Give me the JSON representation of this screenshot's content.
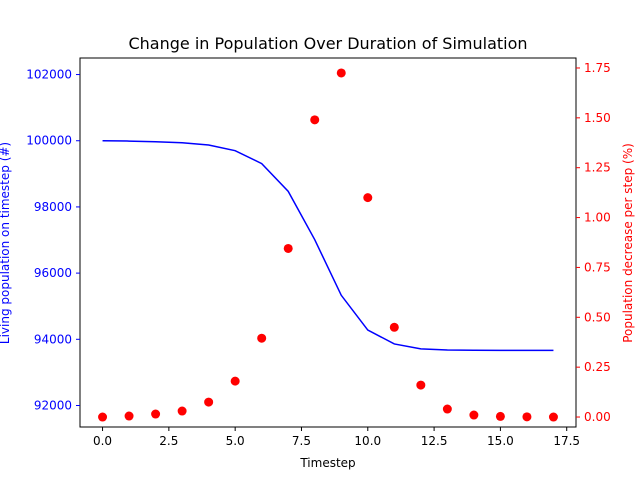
{
  "chart_data": {
    "type": "line+scatter",
    "title": "Change in Population Over Duration of Simulation",
    "xlabel": "Timestep",
    "ylabel_left": "Living population on timestep (#)",
    "ylabel_right": "Population decrease per step (%)",
    "xlim": [
      -0.85,
      17.85
    ],
    "ylim_left": [
      91350,
      102500
    ],
    "ylim_right": [
      -0.05,
      1.8
    ],
    "x_ticks": [
      0.0,
      2.5,
      5.0,
      7.5,
      10.0,
      12.5,
      15.0,
      17.5
    ],
    "x_tick_labels": [
      "0.0",
      "2.5",
      "5.0",
      "7.5",
      "10.0",
      "12.5",
      "15.0",
      "17.5"
    ],
    "y_left_ticks": [
      92000,
      94000,
      96000,
      98000,
      100000,
      102000
    ],
    "y_left_tick_labels": [
      "92000",
      "94000",
      "96000",
      "98000",
      "100000",
      "102000"
    ],
    "y_right_ticks": [
      0.0,
      0.25,
      0.5,
      0.75,
      1.0,
      1.25,
      1.5,
      1.75
    ],
    "y_right_tick_labels": [
      "0.00",
      "0.25",
      "0.50",
      "0.75",
      "1.00",
      "1.25",
      "1.50",
      "1.75"
    ],
    "grid": false,
    "colors": {
      "left": "#0000ff",
      "right": "#ff0000",
      "axes": "#000000"
    },
    "series": [
      {
        "axis": "left",
        "kind": "line",
        "x": [
          0,
          1,
          2,
          3,
          4,
          5,
          6,
          7,
          8,
          9,
          10,
          11,
          12,
          13,
          14,
          15,
          16,
          17
        ],
        "values": [
          100000,
          99990,
          99970,
          99940,
          99870,
          99700,
          99310,
          98470,
          97010,
          95330,
          94280,
          93860,
          93710,
          93675,
          93668,
          93666,
          93665,
          93665
        ]
      },
      {
        "axis": "right",
        "kind": "scatter",
        "x": [
          0,
          1,
          2,
          3,
          4,
          5,
          6,
          7,
          8,
          9,
          10,
          11,
          12,
          13,
          14,
          15,
          16,
          17
        ],
        "values": [
          0.0,
          0.005,
          0.015,
          0.03,
          0.075,
          0.18,
          0.395,
          0.845,
          1.49,
          1.725,
          1.1,
          0.45,
          0.16,
          0.04,
          0.01,
          0.003,
          0.001,
          0.0
        ]
      }
    ]
  }
}
